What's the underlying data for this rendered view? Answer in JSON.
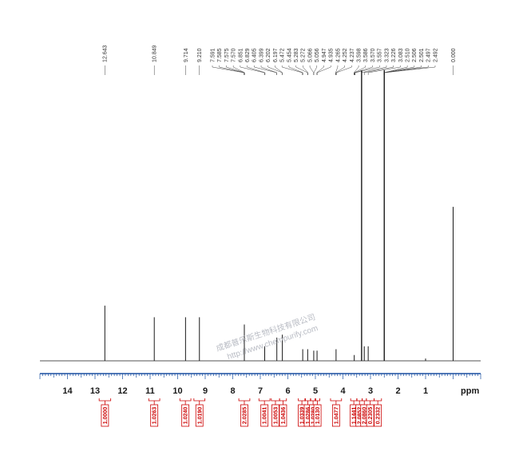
{
  "chart_data": {
    "type": "line",
    "xlabel": "ppm",
    "x_range": [
      15.0,
      -1.0
    ],
    "x_ticks": [
      "14",
      "13",
      "12",
      "11",
      "10",
      "9",
      "8",
      "7",
      "6",
      "5",
      "4",
      "3",
      "2",
      "1"
    ],
    "peak_labels": [
      {
        "value": "12.643",
        "x": 12.643
      },
      {
        "value": "10.849",
        "x": 10.849
      },
      {
        "value": "9.714",
        "x": 9.714
      },
      {
        "value": "9.210",
        "x": 9.21
      },
      {
        "value": "7.591"
      },
      {
        "value": "7.585"
      },
      {
        "value": "7.575"
      },
      {
        "value": "7.570"
      },
      {
        "value": "6.851"
      },
      {
        "value": "6.829"
      },
      {
        "value": "6.405"
      },
      {
        "value": "6.399"
      },
      {
        "value": "6.202"
      },
      {
        "value": "6.197"
      },
      {
        "value": "5.472"
      },
      {
        "value": "5.454"
      },
      {
        "value": "5.283"
      },
      {
        "value": "5.272"
      },
      {
        "value": "5.066"
      },
      {
        "value": "5.056"
      },
      {
        "value": "4.947"
      },
      {
        "value": "4.935"
      },
      {
        "value": "4.265"
      },
      {
        "value": "4.252"
      },
      {
        "value": "4.237"
      },
      {
        "value": "3.598"
      },
      {
        "value": "3.586"
      },
      {
        "value": "3.570"
      },
      {
        "value": "3.557"
      },
      {
        "value": "3.323"
      },
      {
        "value": "3.226"
      },
      {
        "value": "3.083"
      },
      {
        "value": "2.510"
      },
      {
        "value": "2.506"
      },
      {
        "value": "2.501"
      },
      {
        "value": "2.497"
      },
      {
        "value": "2.492"
      },
      {
        "value": "0.000",
        "x": 0.0
      }
    ],
    "peaks": [
      {
        "x": 12.643,
        "h": 0.19
      },
      {
        "x": 10.849,
        "h": 0.15
      },
      {
        "x": 9.714,
        "h": 0.15
      },
      {
        "x": 9.21,
        "h": 0.15
      },
      {
        "x": 7.58,
        "h": 0.125
      },
      {
        "x": 6.84,
        "h": 0.05
      },
      {
        "x": 6.4,
        "h": 0.08
      },
      {
        "x": 6.2,
        "h": 0.09
      },
      {
        "x": 5.46,
        "h": 0.04
      },
      {
        "x": 5.28,
        "h": 0.04
      },
      {
        "x": 5.06,
        "h": 0.035
      },
      {
        "x": 4.94,
        "h": 0.035
      },
      {
        "x": 4.25,
        "h": 0.04
      },
      {
        "x": 3.59,
        "h": 0.02
      },
      {
        "x": 3.323,
        "h": 1.0
      },
      {
        "x": 3.226,
        "h": 0.05
      },
      {
        "x": 3.083,
        "h": 0.05
      },
      {
        "x": 2.5,
        "h": 1.0
      },
      {
        "x": 1.0,
        "h": 0.008
      },
      {
        "x": 0.0,
        "h": 0.53
      }
    ],
    "integrals": [
      {
        "value": "1.0000",
        "from": 12.85,
        "to": 12.43
      },
      {
        "value": "1.0263",
        "from": 11.05,
        "to": 10.65
      },
      {
        "value": "1.0240",
        "from": 9.92,
        "to": 9.52
      },
      {
        "value": "1.0190",
        "from": 9.41,
        "to": 9.01
      },
      {
        "value": "2.0285",
        "from": 7.78,
        "to": 7.38
      },
      {
        "value": "1.0041",
        "from": 7.05,
        "to": 6.65
      },
      {
        "value": "1.0053",
        "from": 6.6,
        "to": 6.3
      },
      {
        "value": "1.0436",
        "from": 6.3,
        "to": 6.05
      },
      {
        "value": "1.0339",
        "from": 5.62,
        "to": 5.36
      },
      {
        "value": "1.0286",
        "from": 5.38,
        "to": 5.17
      },
      {
        "value": "1.0280",
        "from": 5.18,
        "to": 4.99
      },
      {
        "value": "1.0130",
        "from": 5.01,
        "to": 4.84
      },
      {
        "value": "1.0477",
        "from": 4.45,
        "to": 4.05
      },
      {
        "value": "1.1441",
        "from": 3.72,
        "to": 3.49
      },
      {
        "value": "2.0852",
        "from": 3.5,
        "to": 3.3
      },
      {
        "value": "2.0860",
        "from": 3.3,
        "to": 3.15
      },
      {
        "value": "0.2305",
        "from": 3.15,
        "to": 2.87
      },
      {
        "value": "0.2332",
        "from": 2.87,
        "to": 2.6
      }
    ],
    "colors": {
      "spectrum": "#1a1a1a",
      "axis": "#1a4fa0",
      "integral": "#cc0000"
    }
  },
  "watermark": {
    "lines": [
      "成都普乐斯生物科技有限公司",
      "http://www.chempurify.com"
    ]
  }
}
